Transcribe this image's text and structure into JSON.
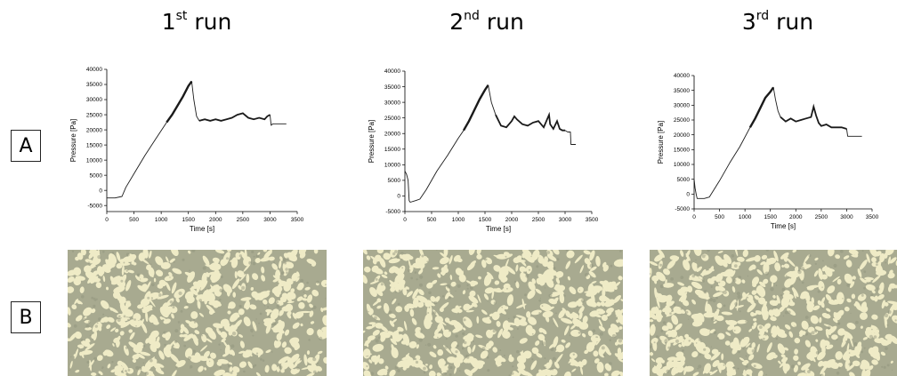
{
  "runs": [
    {
      "title_main": "1",
      "title_sup": "st",
      "title_rest": " run"
    },
    {
      "title_main": "2",
      "title_sup": "nd",
      "title_rest": " run"
    },
    {
      "title_main": "3",
      "title_sup": "rd",
      "title_rest": " run"
    }
  ],
  "row_labels": {
    "a": "A",
    "b": "B"
  },
  "colors": {
    "line": "#1a1a1a",
    "micro_dark": "#a8aa90",
    "micro_light": "#efebc6"
  },
  "chart_data": [
    {
      "type": "line",
      "title": "",
      "xlabel": "Time [s]",
      "ylabel": "Pressure [Pa]",
      "xlim": [
        0,
        3500
      ],
      "ylim": [
        -7000,
        40000
      ],
      "xticks": [
        0,
        500,
        1000,
        1500,
        2000,
        2500,
        3000,
        3500
      ],
      "yticks": [
        -5000,
        0,
        5000,
        10000,
        15000,
        20000,
        25000,
        30000,
        35000,
        40000
      ],
      "series": [
        {
          "x": [
            0,
            150,
            280,
            350,
            500,
            700,
            900,
            1100,
            1200,
            1300,
            1400,
            1500,
            1560,
            1600,
            1650,
            1700,
            1800,
            1900,
            2000,
            2100,
            2200,
            2300,
            2400,
            2500,
            2600,
            2700,
            2800,
            2900,
            2950,
            3000,
            3020,
            3050,
            3100,
            3200,
            3300
          ],
          "y": [
            -2500,
            -2500,
            -2000,
            1000,
            5500,
            11500,
            17000,
            22500,
            25000,
            28000,
            31000,
            34500,
            36000,
            30000,
            24500,
            23000,
            23500,
            23000,
            23500,
            23000,
            23500,
            24000,
            25000,
            25500,
            24000,
            23500,
            24000,
            23500,
            24500,
            25000,
            21500,
            22000,
            22000,
            22000,
            22000
          ]
        }
      ]
    },
    {
      "type": "line",
      "title": "",
      "xlabel": "Time [s]",
      "ylabel": "Pressure [Pa]",
      "xlim": [
        0,
        3500
      ],
      "ylim": [
        -5000,
        40000
      ],
      "xticks": [
        0,
        500,
        1000,
        1500,
        2000,
        2500,
        3000,
        3500
      ],
      "yticks": [
        -5000,
        0,
        5000,
        10000,
        15000,
        20000,
        25000,
        30000,
        35000,
        40000
      ],
      "series": [
        {
          "x": [
            0,
            30,
            60,
            80,
            100,
            200,
            280,
            400,
            600,
            800,
            1000,
            1100,
            1200,
            1300,
            1400,
            1500,
            1560,
            1620,
            1700,
            1800,
            1900,
            2000,
            2050,
            2100,
            2200,
            2300,
            2400,
            2500,
            2550,
            2600,
            2700,
            2720,
            2780,
            2850,
            2900,
            2950,
            3000,
            3050,
            3100,
            3110,
            3200
          ],
          "y": [
            8000,
            7000,
            5000,
            -1500,
            -2000,
            -1500,
            -1000,
            2000,
            8000,
            13000,
            18500,
            21000,
            24000,
            27500,
            31000,
            34000,
            35500,
            30000,
            26000,
            22500,
            22000,
            24000,
            25500,
            24500,
            23000,
            22500,
            23500,
            24000,
            23000,
            22000,
            26000,
            23000,
            21500,
            24000,
            21500,
            21000,
            21000,
            20500,
            20500,
            16500,
            16500
          ]
        }
      ]
    },
    {
      "type": "line",
      "title": "",
      "xlabel": "Time [s]",
      "ylabel": "Pressure [Pa]",
      "xlim": [
        0,
        3500
      ],
      "ylim": [
        -5000,
        40000
      ],
      "xticks": [
        0,
        500,
        1000,
        1500,
        2000,
        2500,
        3000,
        3500
      ],
      "yticks": [
        -5000,
        0,
        5000,
        10000,
        15000,
        20000,
        25000,
        30000,
        35000,
        40000
      ],
      "series": [
        {
          "x": [
            0,
            20,
            40,
            60,
            100,
            200,
            300,
            500,
            700,
            900,
            1100,
            1200,
            1300,
            1400,
            1500,
            1560,
            1600,
            1650,
            1700,
            1800,
            1900,
            2000,
            2100,
            2200,
            2300,
            2350,
            2400,
            2450,
            2500,
            2600,
            2700,
            2800,
            2900,
            3000,
            3020,
            3100,
            3200,
            3300
          ],
          "y": [
            5000,
            2000,
            0,
            -1500,
            -1500,
            -1500,
            -1000,
            4500,
            10500,
            16000,
            22500,
            25500,
            29000,
            32500,
            34500,
            36000,
            32000,
            28000,
            26000,
            24500,
            25500,
            24500,
            25000,
            25500,
            26000,
            29500,
            26500,
            24000,
            23000,
            23500,
            22500,
            22500,
            22500,
            22000,
            19500,
            19500,
            19500,
            19500
          ]
        }
      ]
    }
  ]
}
